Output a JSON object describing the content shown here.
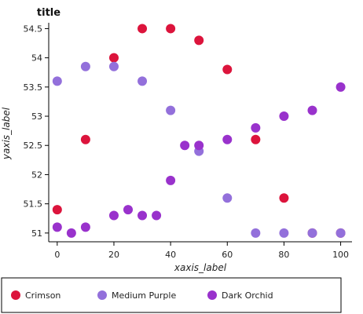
{
  "chart_data": {
    "type": "line",
    "title": "title",
    "xlabel": "xaxis_label",
    "ylabel": "yaxis_label",
    "xlim": [
      -3,
      104
    ],
    "ylim": [
      50.85,
      54.6
    ],
    "xticks": [
      0,
      20,
      40,
      60,
      80,
      100
    ],
    "yticks": [
      51,
      51.5,
      52,
      52.5,
      53,
      53.5,
      54,
      54.5
    ],
    "grid": false,
    "legend": "bottom",
    "series": [
      {
        "name": "Crimson",
        "color": "#dc143c",
        "x": [
          0,
          10,
          20,
          30,
          40,
          50,
          60,
          70,
          80,
          90,
          100
        ],
        "y": [
          51.4,
          52.6,
          54.0,
          54.5,
          54.5,
          54.3,
          53.8,
          52.6,
          51.6,
          51.0,
          51.0
        ]
      },
      {
        "name": "Medium Purple",
        "color": "#9370db",
        "x": [
          0,
          10,
          20,
          30,
          40,
          50,
          60,
          70,
          80,
          90,
          100
        ],
        "y": [
          53.6,
          53.85,
          53.85,
          53.6,
          53.1,
          52.4,
          51.6,
          51.0,
          51.0,
          51.0,
          51.0
        ]
      },
      {
        "name": "Dark Orchid",
        "color": "#9932cc",
        "x": [
          0,
          5,
          10,
          20,
          25,
          30,
          35,
          40,
          45,
          50,
          60,
          70,
          80,
          90,
          100
        ],
        "y": [
          51.1,
          51.0,
          51.1,
          51.3,
          51.4,
          51.3,
          51.3,
          51.9,
          52.5,
          52.5,
          52.6,
          52.8,
          53.0,
          53.1,
          53.5
        ]
      }
    ]
  }
}
